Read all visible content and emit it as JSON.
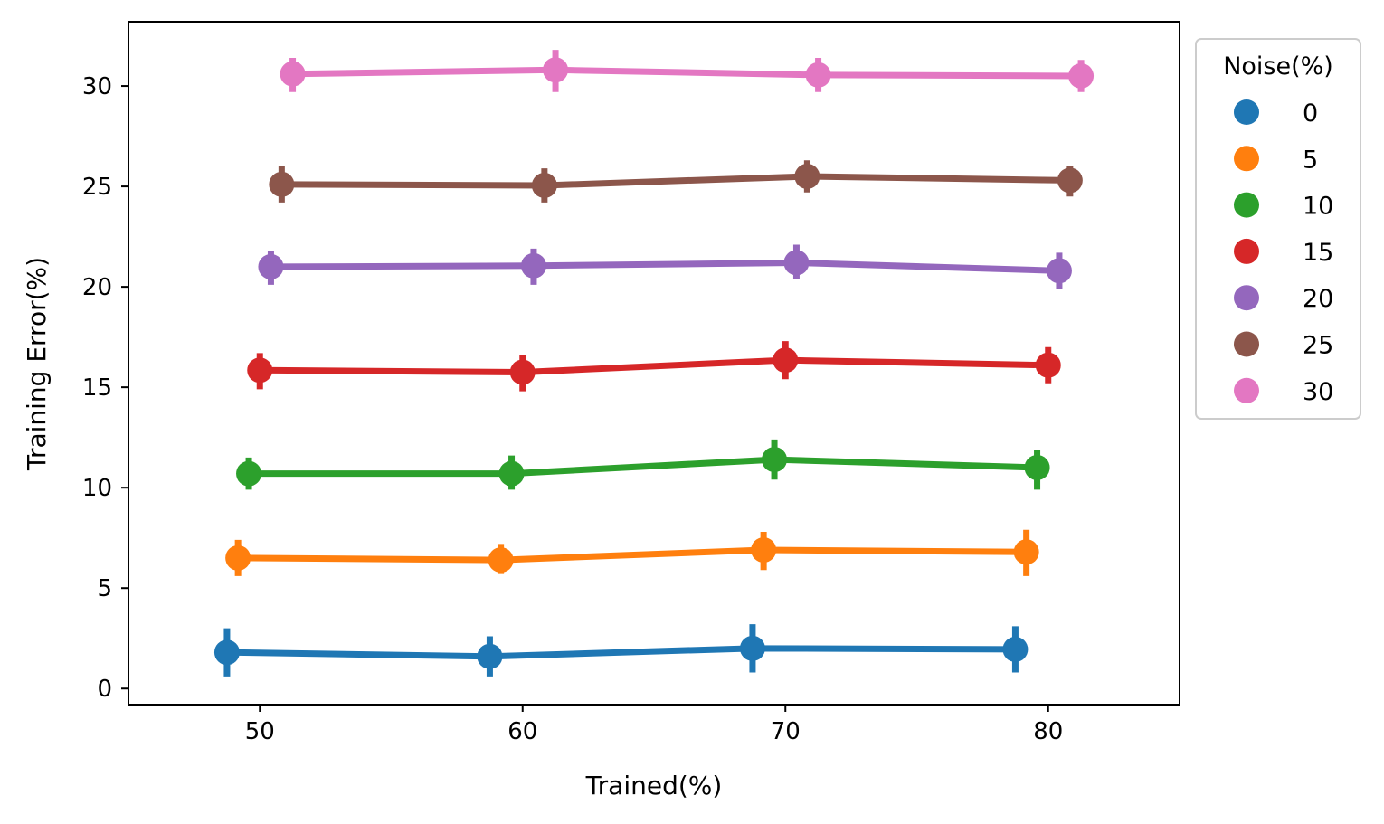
{
  "chart_data": {
    "type": "line",
    "xlabel": "Trained(%)",
    "ylabel": "Training Error(%)",
    "xlim": [
      45,
      85
    ],
    "ylim": [
      -0.8,
      33.2
    ],
    "xticks": [
      50,
      60,
      70,
      80
    ],
    "yticks": [
      0,
      5,
      10,
      15,
      20,
      25,
      30
    ],
    "grid": false,
    "legend": {
      "title": "Noise(%)",
      "placement": "outside-top-right"
    },
    "x_categories": [
      50,
      60,
      70,
      80
    ],
    "series": [
      {
        "name": "0",
        "color": "#1f77b4",
        "x": [
          48.75,
          58.75,
          68.75,
          78.75
        ],
        "y": [
          1.8,
          1.6,
          2.0,
          1.95
        ],
        "err_low": [
          0.6,
          0.6,
          0.8,
          0.8
        ],
        "err_high": [
          3.0,
          2.6,
          3.2,
          3.1
        ]
      },
      {
        "name": "5",
        "color": "#ff7f0e",
        "x": [
          49.17,
          59.17,
          69.17,
          79.17
        ],
        "y": [
          6.5,
          6.4,
          6.9,
          6.8
        ],
        "err_low": [
          5.6,
          5.7,
          5.9,
          5.6
        ],
        "err_high": [
          7.4,
          7.2,
          7.8,
          7.9
        ]
      },
      {
        "name": "10",
        "color": "#2ca02c",
        "x": [
          49.58,
          59.58,
          69.58,
          79.58
        ],
        "y": [
          10.7,
          10.7,
          11.4,
          11.0
        ],
        "err_low": [
          9.9,
          9.9,
          10.4,
          9.9
        ],
        "err_high": [
          11.5,
          11.6,
          12.4,
          11.9
        ]
      },
      {
        "name": "15",
        "color": "#d62728",
        "x": [
          50.0,
          60.0,
          70.0,
          80.0
        ],
        "y": [
          15.85,
          15.75,
          16.35,
          16.1
        ],
        "err_low": [
          14.9,
          14.8,
          15.4,
          15.2
        ],
        "err_high": [
          16.7,
          16.6,
          17.3,
          17.0
        ]
      },
      {
        "name": "20",
        "color": "#9467bd",
        "x": [
          50.42,
          60.42,
          70.42,
          80.42
        ],
        "y": [
          21.0,
          21.05,
          21.2,
          20.8
        ],
        "err_low": [
          20.1,
          20.1,
          20.4,
          19.9
        ],
        "err_high": [
          21.8,
          21.9,
          22.1,
          21.7
        ]
      },
      {
        "name": "25",
        "color": "#8c564b",
        "x": [
          50.83,
          60.83,
          70.83,
          80.83
        ],
        "y": [
          25.1,
          25.05,
          25.5,
          25.3
        ],
        "err_low": [
          24.2,
          24.2,
          24.7,
          24.5
        ],
        "err_high": [
          26.0,
          25.9,
          26.3,
          26.0
        ]
      },
      {
        "name": "30",
        "color": "#e377c2",
        "x": [
          51.25,
          61.25,
          71.25,
          81.25
        ],
        "y": [
          30.6,
          30.8,
          30.55,
          30.5
        ],
        "err_low": [
          29.7,
          29.7,
          29.7,
          29.7
        ],
        "err_high": [
          31.4,
          31.8,
          31.4,
          31.3
        ]
      }
    ]
  }
}
